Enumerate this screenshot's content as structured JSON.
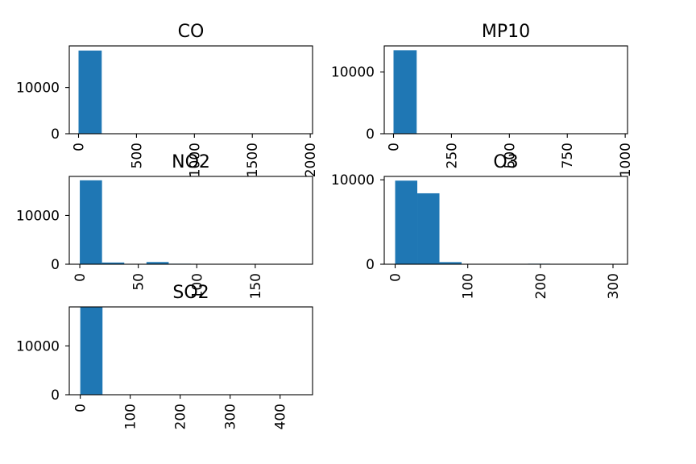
{
  "chart_data": [
    {
      "type": "bar",
      "title": "CO",
      "bins": 10,
      "xlim": [
        -80,
        2020
      ],
      "ylim": [
        0,
        19000
      ],
      "xticks": [
        0,
        500,
        1000,
        1500,
        2000
      ],
      "xtick_labels": [
        "0",
        "500",
        "1000",
        "1500",
        "2000"
      ],
      "yticks": [
        0,
        10000
      ],
      "ytick_labels": [
        "0",
        "10000"
      ],
      "bin_edges": [
        0,
        200,
        400,
        600,
        800,
        1000,
        1200,
        1400,
        1600,
        1800,
        2000
      ],
      "values": [
        18000,
        60,
        20,
        10,
        5,
        5,
        3,
        2,
        2,
        2
      ],
      "color": "#1f77b4",
      "grid": false
    },
    {
      "type": "bar",
      "title": "MP10",
      "bins": 10,
      "xlim": [
        -40,
        1010
      ],
      "ylim": [
        0,
        14200
      ],
      "xticks": [
        0,
        250,
        500,
        750,
        1000
      ],
      "xtick_labels": [
        "0",
        "250",
        "500",
        "750",
        "1000"
      ],
      "yticks": [
        0,
        10000
      ],
      "ytick_labels": [
        "0",
        "10000"
      ],
      "bin_edges": [
        0,
        100,
        200,
        300,
        400,
        500,
        600,
        700,
        800,
        900,
        1000
      ],
      "values": [
        13500,
        60,
        20,
        10,
        5,
        5,
        3,
        2,
        2,
        5
      ],
      "color": "#1f77b4",
      "grid": false
    },
    {
      "type": "bar",
      "title": "NO2",
      "bins": 10,
      "xlim": [
        -9,
        199
      ],
      "ylim": [
        0,
        18000
      ],
      "xticks": [
        0,
        50,
        100,
        150
      ],
      "xtick_labels": [
        "0",
        "50",
        "100",
        "150"
      ],
      "yticks": [
        0,
        10000
      ],
      "ytick_labels": [
        "0",
        "10000"
      ],
      "bin_edges": [
        0,
        19,
        38,
        57,
        76,
        95,
        114,
        133,
        152,
        171,
        190
      ],
      "values": [
        17200,
        350,
        60,
        450,
        100,
        60,
        30,
        20,
        10,
        10
      ],
      "color": "#1f77b4",
      "grid": false
    },
    {
      "type": "bar",
      "title": "O3",
      "bins": 10,
      "xlim": [
        -15,
        320
      ],
      "ylim": [
        0,
        10400
      ],
      "xticks": [
        0,
        100,
        200,
        300
      ],
      "xtick_labels": [
        "0",
        "100",
        "200",
        "300"
      ],
      "yticks": [
        0,
        10000
      ],
      "ytick_labels": [
        "0",
        "10000"
      ],
      "bin_edges": [
        0,
        30.5,
        61,
        91.5,
        122,
        152.5,
        183,
        213.5,
        244,
        274.5,
        305
      ],
      "values": [
        9900,
        8400,
        250,
        40,
        20,
        10,
        60,
        10,
        5,
        5
      ],
      "color": "#1f77b4",
      "grid": false
    },
    {
      "type": "bar",
      "title": "SO2",
      "bins": 10,
      "xlim": [
        -22,
        465
      ],
      "ylim": [
        0,
        18000
      ],
      "xticks": [
        0,
        100,
        200,
        300,
        400
      ],
      "xtick_labels": [
        "0",
        "100",
        "200",
        "300",
        "400"
      ],
      "yticks": [
        0,
        10000
      ],
      "ytick_labels": [
        "0",
        "10000"
      ],
      "bin_edges": [
        0,
        44.5,
        89,
        133.5,
        178,
        222.5,
        267,
        311.5,
        356,
        400.5,
        445
      ],
      "values": [
        18000,
        60,
        20,
        10,
        5,
        5,
        3,
        2,
        2,
        2
      ],
      "color": "#1f77b4",
      "grid": false
    }
  ]
}
